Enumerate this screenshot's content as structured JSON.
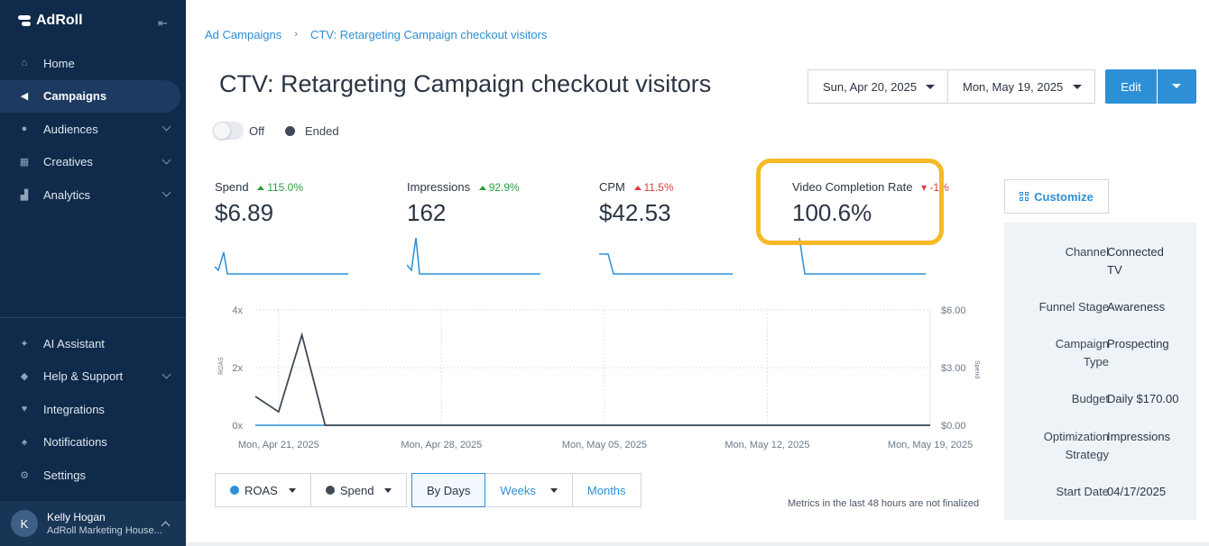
{
  "app": {
    "brand": "AdRoll"
  },
  "sidebar": {
    "items": [
      {
        "label": "Home",
        "icon": "home-icon",
        "active": false,
        "expandable": false
      },
      {
        "label": "Campaigns",
        "icon": "megaphone-icon",
        "active": true,
        "expandable": false
      },
      {
        "label": "Audiences",
        "icon": "people-icon",
        "active": false,
        "expandable": true
      },
      {
        "label": "Creatives",
        "icon": "grid-icon",
        "active": false,
        "expandable": true
      },
      {
        "label": "Analytics",
        "icon": "bar-chart-icon",
        "active": false,
        "expandable": true
      }
    ],
    "bottom_items": [
      {
        "label": "AI Assistant",
        "icon": "sparkle-icon",
        "expandable": false
      },
      {
        "label": "Help & Support",
        "icon": "help-icon",
        "expandable": true
      },
      {
        "label": "Integrations",
        "icon": "plug-icon",
        "expandable": false
      },
      {
        "label": "Notifications",
        "icon": "bell-icon",
        "expandable": false
      },
      {
        "label": "Settings",
        "icon": "gear-icon",
        "expandable": false
      }
    ],
    "user": {
      "initial": "K",
      "name": "Kelly Hogan",
      "org": "AdRoll Marketing House..."
    }
  },
  "breadcrumb": {
    "root": "Ad Campaigns",
    "separator": "›",
    "current": "CTV: Retargeting Campaign checkout visitors"
  },
  "page": {
    "title": "CTV: Retargeting Campaign checkout visitors",
    "toggle_label": "Off",
    "status": "Ended"
  },
  "dates": {
    "start": "Sun, Apr 20, 2025",
    "end": "Mon, May 19, 2025"
  },
  "actions": {
    "edit": "Edit"
  },
  "metrics": [
    {
      "label": "Spend",
      "delta": "115.0%",
      "direction": "up",
      "value": "$6.89"
    },
    {
      "label": "Impressions",
      "delta": "92.9%",
      "direction": "up",
      "value": "162"
    },
    {
      "label": "CPM",
      "delta": "11.5%",
      "direction": "up-red",
      "value": "$42.53"
    },
    {
      "label": "Video Completion Rate",
      "delta": "-1%",
      "direction": "down",
      "value": "100.6%"
    }
  ],
  "chart_data": {
    "type": "line",
    "x": [
      "Mon, Apr 21, 2025",
      "Mon, Apr 28, 2025",
      "Mon, May 05, 2025",
      "Mon, May 12, 2025",
      "Mon, May 19, 2025"
    ],
    "ylabel": "ROAS",
    "y2label": "Spend",
    "y_ticks": [
      "0x",
      "2x",
      "4x"
    ],
    "y2_ticks": [
      "$0.00",
      "$3.00",
      "$6.00"
    ],
    "ylim": [
      0,
      4
    ],
    "y2lim": [
      0,
      6
    ],
    "grid": true,
    "series": [
      {
        "name": "ROAS",
        "color": "#2d8fd6",
        "axis": "left",
        "values_by_day": [
          0,
          0,
          0,
          0,
          0,
          0,
          0,
          0,
          0,
          0,
          0,
          0,
          0,
          0,
          0,
          0,
          0,
          0,
          0,
          0,
          0,
          0,
          0,
          0,
          0,
          0,
          0,
          0,
          0,
          0
        ]
      },
      {
        "name": "Spend",
        "color": "#3f4a58",
        "axis": "right",
        "values_by_day": [
          1.5,
          0.7,
          4.7,
          0,
          0,
          0,
          0,
          0,
          0,
          0,
          0,
          0,
          0,
          0,
          0,
          0,
          0,
          0,
          0,
          0,
          0,
          0,
          0,
          0,
          0,
          0,
          0,
          0,
          0,
          0
        ]
      }
    ]
  },
  "controls": {
    "series_selects": [
      {
        "label": "ROAS",
        "color": "#2d8fd6"
      },
      {
        "label": "Spend",
        "color": "#3f4a58"
      }
    ],
    "ranges": [
      "By Days",
      "Weeks",
      "Months"
    ],
    "active_range": "By Days",
    "footnote": "Metrics in the last 48 hours are not finalized"
  },
  "panel": {
    "customize": "Customize",
    "rows": [
      {
        "key": "Channel",
        "value": "Connected TV"
      },
      {
        "key": "Funnel Stage",
        "value": "Awareness"
      },
      {
        "key": "Campaign Type",
        "value": "Prospecting"
      },
      {
        "key": "Budget",
        "value": "Daily $170.00"
      },
      {
        "key": "Optimization Strategy",
        "value": "Impressions"
      },
      {
        "key": "Start Date",
        "value": "04/17/2025"
      }
    ]
  },
  "colors": {
    "sidebar": "#0f2a4a",
    "accent": "#2d8fd6",
    "highlight": "#f7b928",
    "up": "#2a9d3a",
    "down": "#e03c3c"
  }
}
